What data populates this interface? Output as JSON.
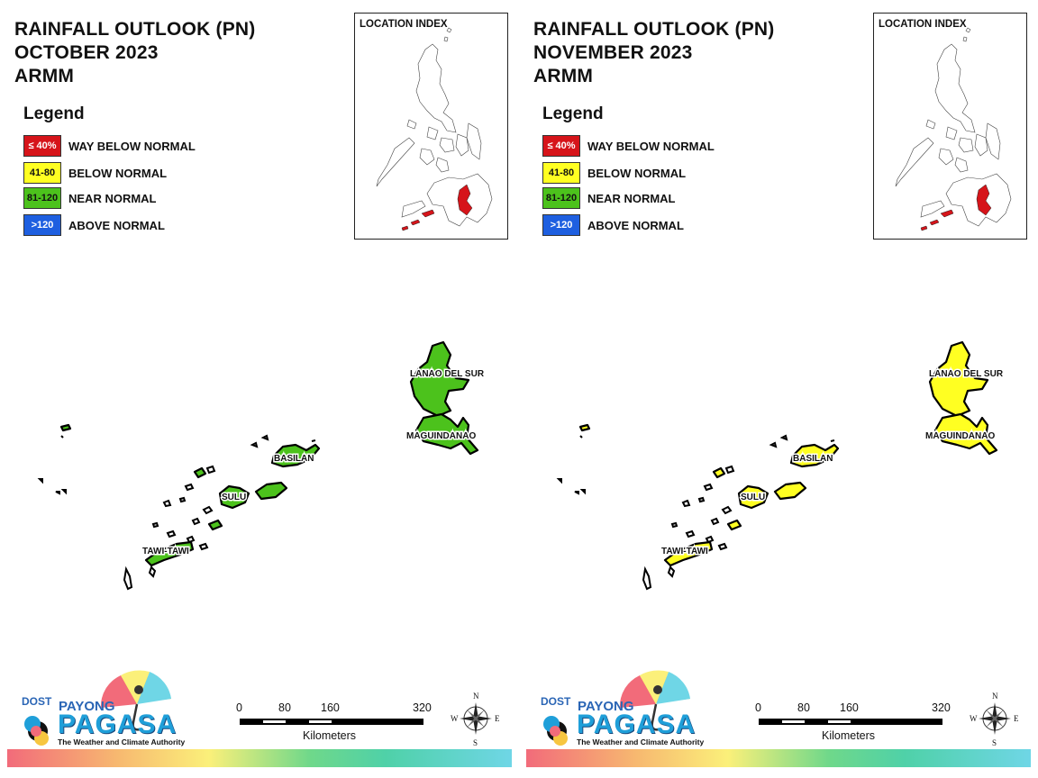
{
  "panels": [
    {
      "id": "october",
      "title_line1": "RAINFALL OUTLOOK (PN)",
      "title_line2": "OCTOBER 2023",
      "title_line3": "ARMM",
      "region_fill": "#4cc21c"
    },
    {
      "id": "november",
      "title_line1": "RAINFALL OUTLOOK (PN)",
      "title_line2": "NOVEMBER 2023",
      "title_line3": "ARMM",
      "region_fill": "#ffff22"
    }
  ],
  "legend": {
    "title": "Legend",
    "items": [
      {
        "range": "≤ 40%",
        "label": "WAY BELOW NORMAL",
        "color": "#d6141a"
      },
      {
        "range": "41-80",
        "label": "BELOW NORMAL",
        "color": "#ffff22"
      },
      {
        "range": "81-120",
        "label": "NEAR NORMAL",
        "color": "#4cc21c"
      },
      {
        "range": ">120",
        "label": "ABOVE NORMAL",
        "color": "#1e5fe0"
      }
    ]
  },
  "location_index": {
    "title": "LOCATION INDEX",
    "highlight_color": "#d6141a"
  },
  "provinces": {
    "lanao_del_sur": "LANAO DEL SUR",
    "maguindanao": "MAGUINDANAO",
    "basilan": "BASILAN",
    "sulu": "SULU",
    "tawi_tawi": "TAWI-TAWI"
  },
  "scale": {
    "ticks": [
      "0",
      "80",
      "160",
      "320"
    ],
    "unit": "Kilometers"
  },
  "compass": {
    "n": "N",
    "e": "E",
    "s": "S",
    "w": "W"
  },
  "logo": {
    "dost": "DOST",
    "payong": "PAYONG",
    "pagasa": "PAGASA",
    "tagline": "The Weather and Climate Authority"
  }
}
